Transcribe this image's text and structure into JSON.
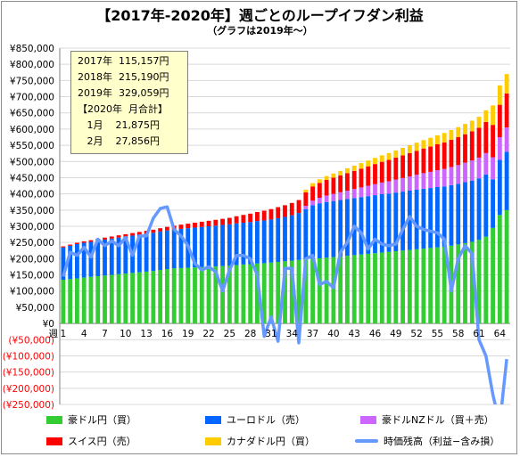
{
  "title": "【2017年-2020年】週ごとのループイフダン利益",
  "subtitle": "（グラフは2019年〜）",
  "info_box": [
    "2017年  115,157円",
    "2018年  215,190円",
    "2019年  329,059円",
    "【2020年  月合計】",
    "   1月    21,875円",
    "   2月    27,856円"
  ],
  "chart_data": {
    "type": "bar",
    "stacked": true,
    "x_prefix_label": "週",
    "x": [
      1,
      2,
      3,
      4,
      5,
      6,
      7,
      8,
      9,
      10,
      11,
      12,
      13,
      14,
      15,
      16,
      17,
      18,
      19,
      20,
      21,
      22,
      23,
      24,
      25,
      26,
      27,
      28,
      29,
      30,
      31,
      32,
      33,
      34,
      35,
      36,
      37,
      38,
      39,
      40,
      41,
      42,
      43,
      44,
      45,
      46,
      47,
      48,
      49,
      50,
      51,
      52,
      53,
      54,
      55,
      56,
      57,
      58,
      59,
      60,
      61,
      62,
      63,
      64,
      65
    ],
    "x_tick_labels": [
      "1",
      "4",
      "7",
      "10",
      "13",
      "16",
      "19",
      "22",
      "25",
      "28",
      "31",
      "34",
      "37",
      "40",
      "43",
      "46",
      "49",
      "52",
      "55",
      "58",
      "61",
      "64"
    ],
    "y_ticks": [
      850000,
      800000,
      750000,
      700000,
      650000,
      600000,
      550000,
      500000,
      450000,
      400000,
      350000,
      300000,
      250000,
      200000,
      150000,
      100000,
      50000,
      0,
      -50000,
      -100000,
      -150000,
      -200000,
      -250000
    ],
    "y_tick_labels": [
      "¥850,000",
      "¥800,000",
      "¥750,000",
      "¥700,000",
      "¥650,000",
      "¥600,000",
      "¥550,000",
      "¥500,000",
      "¥450,000",
      "¥400,000",
      "¥350,000",
      "¥300,000",
      "¥250,000",
      "¥200,000",
      "¥150,000",
      "¥100,000",
      "¥50,000",
      "¥0",
      "(¥50,000)",
      "(¥100,000)",
      "(¥150,000)",
      "(¥200,000)",
      "(¥250,000)"
    ],
    "ylim": [
      -250000,
      850000
    ],
    "grid": true,
    "series": [
      {
        "name": "豪ドル円（買）",
        "color": "#33cc33",
        "values": [
          135000,
          137000,
          139000,
          142000,
          144000,
          146000,
          148000,
          150000,
          152000,
          154000,
          156000,
          158000,
          160000,
          162000,
          165000,
          168000,
          170000,
          171000,
          172000,
          173000,
          174000,
          175000,
          176000,
          177000,
          178000,
          180000,
          182000,
          183000,
          185000,
          186000,
          188000,
          190000,
          192000,
          194000,
          196000,
          198000,
          200000,
          201000,
          203000,
          205000,
          207000,
          209000,
          211000,
          213000,
          215000,
          217000,
          219000,
          221000,
          223000,
          225000,
          227000,
          229000,
          231000,
          233000,
          235000,
          237000,
          240000,
          244000,
          248000,
          252000,
          258000,
          268000,
          295000,
          335000,
          350000
        ]
      },
      {
        "name": "ユーロドル（売）",
        "color": "#0066ff",
        "values": [
          100000,
          103000,
          106000,
          107000,
          108000,
          110000,
          111000,
          112000,
          113000,
          114000,
          115000,
          116000,
          117000,
          118000,
          119000,
          119000,
          120000,
          121000,
          122000,
          123000,
          124000,
          125000,
          126000,
          127000,
          128000,
          129000,
          129000,
          130000,
          131000,
          132000,
          133000,
          135000,
          137000,
          140000,
          145000,
          155000,
          165000,
          170000,
          172000,
          173000,
          174000,
          175000,
          176000,
          177000,
          178000,
          179000,
          180000,
          180000,
          181000,
          182000,
          183000,
          184000,
          185000,
          185000,
          186000,
          186000,
          187000,
          187000,
          188000,
          189000,
          190000,
          192000,
          150000,
          170000,
          180000
        ]
      },
      {
        "name": "豪ドルNZドル（買＋売）",
        "color": "#cc66ff",
        "values": [
          0,
          0,
          0,
          0,
          0,
          0,
          0,
          0,
          0,
          0,
          0,
          0,
          0,
          0,
          0,
          0,
          0,
          0,
          0,
          0,
          0,
          0,
          0,
          0,
          0,
          0,
          0,
          0,
          0,
          0,
          0,
          0,
          0,
          0,
          0,
          10000,
          14000,
          17000,
          20000,
          22000,
          24000,
          26000,
          28000,
          30000,
          32000,
          34000,
          36000,
          38000,
          40000,
          42000,
          44000,
          46000,
          48000,
          50000,
          52000,
          54000,
          56000,
          58000,
          60000,
          62000,
          64000,
          66000,
          68000,
          70000,
          75000
        ]
      },
      {
        "name": "スイス円（売）",
        "color": "#ff0000",
        "values": [
          3000,
          3500,
          4000,
          4500,
          5000,
          5500,
          6000,
          6500,
          7000,
          7500,
          8000,
          8500,
          9000,
          9500,
          10000,
          11000,
          12000,
          13000,
          14000,
          15000,
          16000,
          17000,
          18000,
          19000,
          20000,
          22000,
          24000,
          26000,
          28000,
          30000,
          32000,
          34000,
          36000,
          38000,
          40000,
          42000,
          44000,
          46000,
          48000,
          50000,
          52000,
          54000,
          56000,
          58000,
          60000,
          62000,
          64000,
          66000,
          68000,
          70000,
          72000,
          74000,
          76000,
          78000,
          80000,
          82000,
          84000,
          86000,
          88000,
          90000,
          92000,
          96000,
          100000,
          100000,
          105000
        ]
      },
      {
        "name": "カナダドル円（買）",
        "color": "#ffcc00",
        "values": [
          0,
          0,
          0,
          0,
          0,
          0,
          0,
          0,
          0,
          0,
          0,
          0,
          0,
          0,
          0,
          0,
          0,
          0,
          0,
          0,
          0,
          0,
          0,
          0,
          0,
          0,
          0,
          0,
          0,
          0,
          0,
          0,
          0,
          0,
          0,
          8000,
          10000,
          11000,
          12000,
          13000,
          14000,
          15000,
          16000,
          17000,
          18000,
          19000,
          20000,
          21000,
          22000,
          23000,
          24000,
          25000,
          26000,
          27000,
          28000,
          29000,
          30000,
          31000,
          32000,
          33000,
          34000,
          36000,
          60000,
          60000,
          60000
        ]
      },
      {
        "name": "時価残高（利益−含み損）",
        "color": "#6699ff",
        "type": "line",
        "values": [
          145000,
          220000,
          210000,
          235000,
          205000,
          260000,
          240000,
          255000,
          240000,
          265000,
          210000,
          270000,
          270000,
          325000,
          355000,
          360000,
          290000,
          270000,
          240000,
          185000,
          165000,
          175000,
          160000,
          100000,
          165000,
          210000,
          210000,
          200000,
          150000,
          -40000,
          20000,
          -55000,
          170000,
          170000,
          -60000,
          200000,
          210000,
          120000,
          130000,
          110000,
          220000,
          250000,
          300000,
          280000,
          230000,
          260000,
          245000,
          240000,
          245000,
          290000,
          330000,
          300000,
          290000,
          285000,
          280000,
          260000,
          100000,
          200000,
          240000,
          215000,
          -50000,
          -100000,
          -220000,
          -310000,
          -110000
        ]
      }
    ]
  },
  "legend": [
    {
      "label": "豪ドル円（買）",
      "color": "#33cc33",
      "kind": "box"
    },
    {
      "label": "ユーロドル（売）",
      "color": "#0066ff",
      "kind": "box"
    },
    {
      "label": "豪ドルNZドル（買＋売）",
      "color": "#cc66ff",
      "kind": "box"
    },
    {
      "label": "スイス円（売）",
      "color": "#ff0000",
      "kind": "box"
    },
    {
      "label": "カナダドル円（買）",
      "color": "#ffcc00",
      "kind": "box"
    },
    {
      "label": "時価残高（利益−含み損）",
      "color": "#6699ff",
      "kind": "line"
    }
  ]
}
